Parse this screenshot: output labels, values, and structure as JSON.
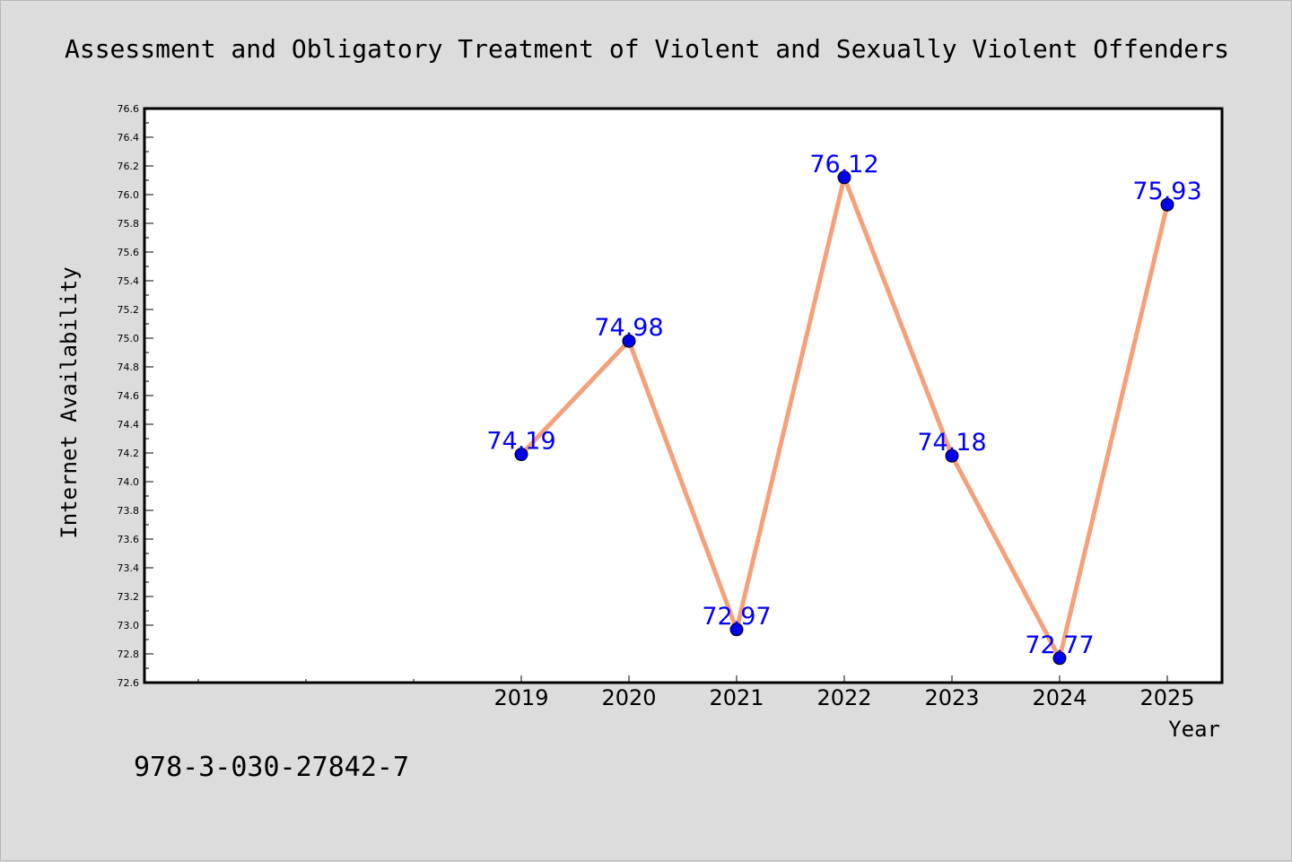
{
  "chart_data": {
    "type": "line",
    "title": "Assessment and Obligatory Treatment of Violent and Sexually Violent Offenders",
    "xlabel": "Year",
    "ylabel": "Internet Availability",
    "x": [
      "2019",
      "2020",
      "2021",
      "2022",
      "2023",
      "2024",
      "2025"
    ],
    "series": [
      {
        "values": [
          74.19,
          74.98,
          72.97,
          76.12,
          74.18,
          72.77,
          75.93
        ]
      }
    ],
    "data_labels": [
      "74.19",
      "74.98",
      "72.97",
      "76.12",
      "74.18",
      "72.77",
      "75.93"
    ],
    "x_tick_labels": [
      "2019",
      "2020",
      "2021",
      "2022",
      "2023",
      "2024",
      "2025"
    ],
    "ylim": [
      72.6,
      76.6
    ],
    "y_tick_labels": [
      "72.6",
      "72.8",
      "73.0",
      "73.2",
      "73.4",
      "73.6",
      "73.8",
      "74.0",
      "74.2",
      "74.4",
      "74.6",
      "74.8",
      "75.0",
      "75.2",
      "75.4",
      "75.6",
      "75.8",
      "76.0",
      "76.2",
      "76.4",
      "76.6"
    ],
    "grid": false,
    "legend": "none",
    "colors": {
      "line": "#f5a07a",
      "marker": "#0000ee",
      "label": "#0000ff",
      "background": "#dcdcdc",
      "plot_background": "#ffffff"
    }
  },
  "footer": {
    "isbn": "978-3-030-27842-7"
  }
}
